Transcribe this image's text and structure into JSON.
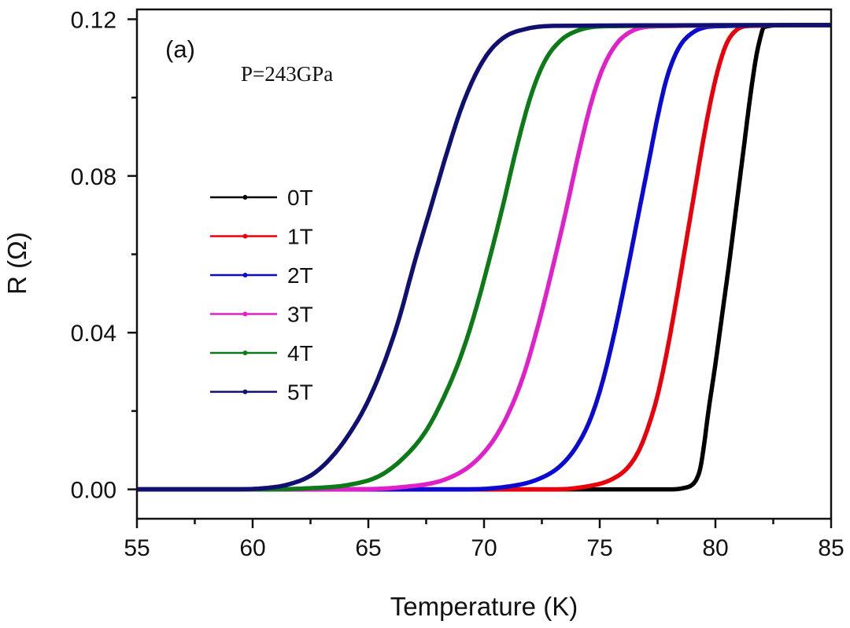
{
  "chart_data": {
    "type": "line",
    "title": "",
    "panel_label": "(a)",
    "annotation": "P=243GPa",
    "xlabel": "Temperature (K)",
    "ylabel": "R (Ω)",
    "xlim": [
      55,
      85
    ],
    "ylim": [
      -0.0075,
      0.1225
    ],
    "x_ticks": [
      55,
      60,
      65,
      70,
      75,
      80,
      85
    ],
    "x_tick_labels": [
      "55",
      "60",
      "65",
      "70",
      "75",
      "80",
      "85"
    ],
    "x_minor_ticks": [
      57.5,
      62.5,
      67.5,
      72.5,
      77.5,
      82.5
    ],
    "y_ticks": [
      0.0,
      0.04,
      0.08,
      0.12
    ],
    "y_tick_labels": [
      "0.00",
      "0.04",
      "0.08",
      "0.12"
    ],
    "y_minor_ticks": [
      0.02,
      0.06,
      0.1
    ],
    "grid": false,
    "legend_position": "center-left",
    "series": [
      {
        "name": "0T",
        "color": "#000000",
        "x": [
          55,
          60,
          65,
          70,
          75,
          77,
          78,
          78.6,
          79.0,
          79.2,
          79.35,
          79.5,
          79.7,
          80.0,
          80.3,
          80.6,
          80.9,
          81.2,
          81.5,
          81.75,
          81.95,
          82.1,
          83,
          85
        ],
        "y": [
          0.0,
          0.0,
          0.0,
          0.0,
          0.0,
          0.0,
          0.0,
          0.0003,
          0.0012,
          0.0028,
          0.0055,
          0.011,
          0.02,
          0.032,
          0.045,
          0.058,
          0.072,
          0.086,
          0.1,
          0.11,
          0.1155,
          0.118,
          0.1185,
          0.1185
        ]
      },
      {
        "name": "1T",
        "color": "#e8000b",
        "x": [
          55,
          60,
          65,
          70,
          73,
          74.5,
          75.5,
          76.2,
          76.7,
          77.1,
          77.5,
          77.9,
          78.3,
          78.7,
          79.1,
          79.5,
          79.9,
          80.2,
          80.5,
          80.9,
          81.5,
          85
        ],
        "y": [
          0.0,
          0.0,
          0.0,
          0.0,
          0.0,
          0.0008,
          0.0025,
          0.0055,
          0.01,
          0.016,
          0.024,
          0.035,
          0.048,
          0.062,
          0.076,
          0.09,
          0.102,
          0.109,
          0.114,
          0.1172,
          0.1183,
          0.1185
        ]
      },
      {
        "name": "2T",
        "color": "#0a0ad2",
        "x": [
          55,
          60,
          65,
          69,
          71,
          72.3,
          73.3,
          74.0,
          74.6,
          75.1,
          75.6,
          76.1,
          76.6,
          77.1,
          77.5,
          77.9,
          78.4,
          79.0,
          80,
          85
        ],
        "y": [
          0.0,
          0.0,
          0.0,
          0.0,
          0.0007,
          0.0025,
          0.006,
          0.011,
          0.018,
          0.027,
          0.039,
          0.053,
          0.068,
          0.083,
          0.095,
          0.105,
          0.1125,
          0.1165,
          0.1182,
          0.1185
        ]
      },
      {
        "name": "3T",
        "color": "#e020c8",
        "x": [
          55,
          60,
          64,
          66.5,
          68.3,
          69.5,
          70.4,
          71.1,
          71.7,
          72.3,
          72.9,
          73.5,
          74.1,
          74.6,
          75.1,
          75.7,
          76.4,
          77.5,
          85
        ],
        "y": [
          0.0,
          0.0,
          0.0,
          0.0006,
          0.0025,
          0.0065,
          0.0125,
          0.02,
          0.029,
          0.041,
          0.055,
          0.07,
          0.086,
          0.098,
          0.107,
          0.1135,
          0.117,
          0.1182,
          0.1185
        ]
      },
      {
        "name": "4T",
        "color": "#0d7a18",
        "x": [
          55,
          60,
          62.5,
          64.2,
          65.5,
          66.6,
          67.5,
          68.3,
          69.0,
          69.6,
          70.2,
          70.8,
          71.4,
          72.0,
          72.6,
          73.3,
          74.1,
          75.2,
          85
        ],
        "y": [
          0.0,
          0.0,
          0.0003,
          0.0012,
          0.0035,
          0.0085,
          0.015,
          0.024,
          0.034,
          0.045,
          0.058,
          0.072,
          0.087,
          0.1,
          0.109,
          0.1145,
          0.1172,
          0.1182,
          0.1185
        ]
      },
      {
        "name": "5T",
        "color": "#101070",
        "x": [
          55,
          59,
          60.5,
          61.5,
          62.5,
          63.3,
          64.1,
          64.9,
          65.6,
          66.3,
          67.0,
          67.7,
          68.4,
          69.0,
          69.6,
          70.2,
          70.9,
          71.8,
          73.0,
          85
        ],
        "y": [
          0.0,
          0.0,
          0.0003,
          0.0012,
          0.0035,
          0.0075,
          0.0135,
          0.0215,
          0.031,
          0.043,
          0.058,
          0.072,
          0.086,
          0.097,
          0.1055,
          0.1115,
          0.1155,
          0.1175,
          0.1183,
          0.1185
        ]
      }
    ]
  }
}
